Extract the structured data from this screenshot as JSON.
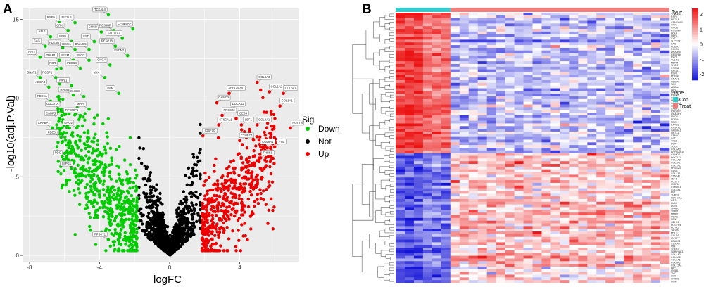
{
  "panels": {
    "a": "A",
    "b": "B"
  },
  "chart_data": [
    {
      "type": "scatter",
      "title": "",
      "xlabel": "logFC",
      "ylabel": "-log10(adj.P.Val)",
      "xlim": [
        -8.4,
        7.4
      ],
      "ylim": [
        -0.4,
        15.7
      ],
      "xticks": [
        -8,
        -4,
        0,
        4
      ],
      "yticks": [
        0,
        5,
        10,
        15
      ],
      "grid": true,
      "legend": {
        "title": "Sig",
        "position": "right",
        "entries": [
          {
            "name": "Down",
            "color": "#00cc00"
          },
          {
            "name": "Not",
            "color": "#000000"
          },
          {
            "name": "Up",
            "color": "#ee0000"
          }
        ]
      },
      "labeled_genes": [
        {
          "name": "TCEAL4",
          "x": -3.5,
          "y": 15.3
        },
        {
          "name": "RSF0",
          "x": -6.3,
          "y": 14.8
        },
        {
          "name": "PIK3LB",
          "x": -5.4,
          "y": 14.8
        },
        {
          "name": "CPNE6AP",
          "x": -2.1,
          "y": 14.4
        },
        {
          "name": "CRK",
          "x": -5.8,
          "y": 14.3
        },
        {
          "name": "CHGB",
          "x": -3.9,
          "y": 14.2
        },
        {
          "name": "RGS9BP",
          "x": -3.2,
          "y": 14.3
        },
        {
          "name": "APL1",
          "x": -6.8,
          "y": 13.9
        },
        {
          "name": "NEFL",
          "x": -5.6,
          "y": 13.6
        },
        {
          "name": "SYT",
          "x": -4.3,
          "y": 13.6
        },
        {
          "name": "SLC17A7",
          "x": -2.7,
          "y": 13.8
        },
        {
          "name": "SAG",
          "x": -7.1,
          "y": 13.3
        },
        {
          "name": "PDE6G",
          "x": -6.1,
          "y": 13.2
        },
        {
          "name": "RIMS1",
          "x": -5.4,
          "y": 13.1
        },
        {
          "name": "DNAJB5",
          "x": -4.6,
          "y": 13.1
        },
        {
          "name": "RESP18",
          "x": -3.1,
          "y": 13.3
        },
        {
          "name": "RHO",
          "x": -7.4,
          "y": 12.6
        },
        {
          "name": "TULP1",
          "x": -6.3,
          "y": 12.4
        },
        {
          "name": "NEFM",
          "x": -5.5,
          "y": 12.4
        },
        {
          "name": "SNCG",
          "x": -4.6,
          "y": 12.4
        },
        {
          "name": "FSCN2",
          "x": -2.4,
          "y": 12.7
        },
        {
          "name": "CHGA",
          "x": -3.4,
          "y": 12.1
        },
        {
          "name": "RGR",
          "x": -6.2,
          "y": 11.9
        },
        {
          "name": "PDE6B",
          "x": -5.1,
          "y": 11.9
        },
        {
          "name": "GNAT1",
          "x": -7.4,
          "y": 11.3
        },
        {
          "name": "RCBP1",
          "x": -6.5,
          "y": 11.3
        },
        {
          "name": "VAX",
          "x": -3.7,
          "y": 11.3
        },
        {
          "name": "ABCA4",
          "x": -6.9,
          "y": 10.7
        },
        {
          "name": "AIPL1",
          "x": -5.6,
          "y": 10.8
        },
        {
          "name": "PAM",
          "x": -2.9,
          "y": 10.3
        },
        {
          "name": "RPE65",
          "x": -5.5,
          "y": 10.2
        },
        {
          "name": "CNGB1",
          "x": -4.9,
          "y": 10.1
        },
        {
          "name": "PDE6A",
          "x": -6.8,
          "y": 9.8
        },
        {
          "name": "GUCA1A",
          "x": -6.2,
          "y": 9.3
        },
        {
          "name": "MPP4",
          "x": -4.6,
          "y": 9.3
        },
        {
          "name": "CABP5",
          "x": -6.3,
          "y": 8.7
        },
        {
          "name": "RPGRIP1",
          "x": -5.1,
          "y": 8.9
        },
        {
          "name": "CRABP1",
          "x": -6.7,
          "y": 8.1
        },
        {
          "name": "ENO2",
          "x": -5.3,
          "y": 8.1
        },
        {
          "name": "PDE6H",
          "x": -6.2,
          "y": 7.5
        },
        {
          "name": "PDC",
          "x": -5.9,
          "y": 6.2
        },
        {
          "name": "IMPG1",
          "x": -5.4,
          "y": 5.5
        },
        {
          "name": "RPS4Y1",
          "x": -3.5,
          "y": 1.0
        },
        {
          "name": "COL6A3",
          "x": 5.0,
          "y": 11.0
        },
        {
          "name": "ARHGAP10",
          "x": 3.4,
          "y": 10.3
        },
        {
          "name": "GAMOS",
          "x": 2.7,
          "y": 9.7
        },
        {
          "name": "DOCK11",
          "x": 3.5,
          "y": 9.3
        },
        {
          "name": "COL1A2",
          "x": 5.7,
          "y": 10.4
        },
        {
          "name": "COL3A1",
          "x": 6.5,
          "y": 10.3
        },
        {
          "name": "COL1A1",
          "x": 6.3,
          "y": 9.5
        },
        {
          "name": "PRSS23",
          "x": 3.0,
          "y": 8.9
        },
        {
          "name": "CES6",
          "x": 3.8,
          "y": 8.7
        },
        {
          "name": "COL4A1",
          "x": 5.0,
          "y": 8.3
        },
        {
          "name": "ST6GAL1",
          "x": 2.8,
          "y": 8.3
        },
        {
          "name": "LEF1",
          "x": 4.1,
          "y": 8.3
        },
        {
          "name": "POSTN",
          "x": 6.9,
          "y": 8.1
        },
        {
          "name": "IGSF10",
          "x": 1.9,
          "y": 7.6
        },
        {
          "name": "CTHRC1",
          "x": 4.0,
          "y": 7.3
        },
        {
          "name": "COL5A1",
          "x": 5.2,
          "y": 6.9
        },
        {
          "name": "FN1",
          "x": 6.0,
          "y": 6.9
        },
        {
          "name": "THBS1",
          "x": 5.2,
          "y": 6.2
        }
      ]
    },
    {
      "type": "heatmap",
      "title": "",
      "annotation": {
        "label": "Type",
        "groups": [
          {
            "name": "Con",
            "color": "#33cccc",
            "n_samples": 6
          },
          {
            "name": "Treat",
            "color": "#f08080",
            "n_samples": 24
          }
        ]
      },
      "color_scale": {
        "ticks": [
          2,
          1,
          0,
          -1,
          -2
        ],
        "low": "#0000dd",
        "mid": "#ffffff",
        "high": "#ee0000"
      },
      "n_rows": 100,
      "row_labels": [
        "TCEAL4",
        "RSF0",
        "PIK3LB",
        "CPNE6AP",
        "CRK",
        "CHGB",
        "RGS9BP",
        "APL1",
        "NEFL",
        "SYT",
        "SLC17A7",
        "SAG",
        "PDE6G",
        "RIMS1",
        "DNAJB5",
        "RESP18",
        "RHO",
        "TULP1",
        "NEFM",
        "SNCG",
        "FSCN2",
        "CHGA",
        "RGR",
        "PDE6B",
        "GNAT1",
        "RCBP1",
        "VAX",
        "ABCA4",
        "AIPL1",
        "PAM",
        "RPE65",
        "CNGB1",
        "PDE6A",
        "GUCA1A",
        "MPP4",
        "CABP5",
        "RPGRIP1",
        "CRABP1",
        "ENO2",
        "PDE6H",
        "PDC",
        "IMPG1",
        "RPS4Y1",
        "GABRA1",
        "NPTX1",
        "STMN2",
        "SST",
        "TAC1",
        "PCP4",
        "SCG2",
        "COL6A3",
        "ARHGAP10",
        "GAMOS",
        "DOCK11",
        "COL1A2",
        "COL3A1",
        "COL1A1",
        "PRSS23",
        "CES6",
        "COL4A1",
        "ST6GAL1",
        "LEF1",
        "POSTN",
        "IGSF10",
        "CTHRC1",
        "COL5A1",
        "FN1",
        "THBS1",
        "HLA-DRA",
        "CD74",
        "LUM",
        "DCN",
        "SPARC",
        "TIMP1",
        "MMP2",
        "VCAN",
        "FBN1",
        "CDH11",
        "PDGFRB",
        "ACTA2",
        "TAGLN",
        "MYL9",
        "CALD1",
        "IGFBP7",
        "LGALS1",
        "S100A6",
        "VIM",
        "TGFBI",
        "SERPINE1",
        "COL4A2",
        "COL5A2",
        "COL6A1",
        "COL6A2",
        "COL12A1",
        "FAP",
        "ITGB1",
        "TNC",
        "LOX",
        "SFRP2",
        "MGP"
      ]
    }
  ]
}
